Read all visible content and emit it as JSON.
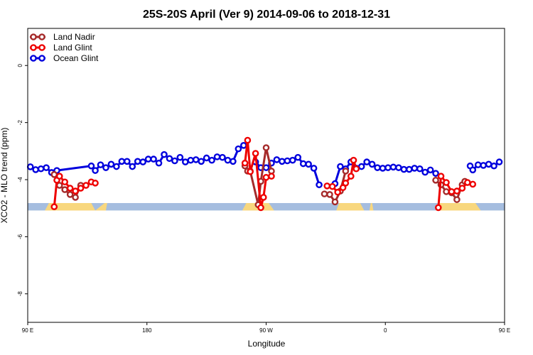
{
  "chart_data": {
    "type": "line",
    "title": "25S-20S April (Ver 9)   2014-09-06 to 2018-12-31",
    "xlabel": "Longitude",
    "ylabel": "XCO2 - MLO trend (ppm)",
    "xlim": [
      90,
      450
    ],
    "ylim": [
      -9,
      1.3
    ],
    "x_ticks": [
      {
        "value": 90,
        "label": "90 E"
      },
      {
        "value": 180,
        "label": "180"
      },
      {
        "value": 270,
        "label": "90 W"
      },
      {
        "value": 360,
        "label": "0"
      },
      {
        "value": 450,
        "label": "90 E"
      },
      {
        "value": 540,
        "label": "180"
      }
    ],
    "y_ticks": [
      {
        "value": 0,
        "label": "0"
      },
      {
        "value": -2,
        "label": "-2"
      },
      {
        "value": -4,
        "label": "-4"
      },
      {
        "value": -6,
        "label": "-6"
      },
      {
        "value": -8,
        "label": "-8"
      }
    ],
    "legend": {
      "placement": "top-left",
      "entries": [
        "Land Nadir",
        "Land Glint",
        "Ocean Glint"
      ]
    },
    "colors": {
      "land_nadir": "#a52a2a",
      "land_glint": "#ee0000",
      "ocean_glint": "#0000dd",
      "ocean_band": "#a5bddf",
      "land_band": "#f8d77e"
    },
    "series": [
      {
        "name": "Ocean Glint",
        "color": "#0000dd",
        "segments": [
          [
            [
              92,
              -3.55
            ],
            [
              96,
              -3.65
            ],
            [
              100,
              -3.62
            ],
            [
              104,
              -3.58
            ],
            [
              108,
              -3.75
            ],
            [
              112,
              -3.68
            ],
            [
              138,
              -3.52
            ],
            [
              141,
              -3.68
            ],
            [
              145,
              -3.48
            ],
            [
              149,
              -3.58
            ],
            [
              153,
              -3.46
            ],
            [
              157,
              -3.54
            ],
            [
              161,
              -3.36
            ],
            [
              165,
              -3.36
            ],
            [
              169,
              -3.54
            ],
            [
              173,
              -3.36
            ],
            [
              177,
              -3.38
            ],
            [
              181,
              -3.28
            ],
            [
              185,
              -3.28
            ],
            [
              189,
              -3.42
            ],
            [
              193,
              -3.12
            ],
            [
              197,
              -3.26
            ],
            [
              201,
              -3.34
            ],
            [
              205,
              -3.22
            ],
            [
              209,
              -3.38
            ],
            [
              213,
              -3.32
            ],
            [
              217,
              -3.3
            ],
            [
              221,
              -3.36
            ],
            [
              225,
              -3.24
            ],
            [
              229,
              -3.32
            ],
            [
              233,
              -3.2
            ],
            [
              237,
              -3.22
            ],
            [
              241,
              -3.32
            ],
            [
              245,
              -3.36
            ],
            [
              249,
              -2.92
            ],
            [
              253,
              -2.8
            ]
          ],
          [
            [
              262,
              -3.38
            ],
            [
              266,
              -3.58
            ],
            [
              270,
              -3.58
            ],
            [
              274,
              -3.42
            ],
            [
              278,
              -3.3
            ],
            [
              282,
              -3.36
            ],
            [
              286,
              -3.34
            ],
            [
              290,
              -3.32
            ],
            [
              294,
              -3.22
            ],
            [
              298,
              -3.44
            ],
            [
              302,
              -3.46
            ],
            [
              306,
              -3.6
            ],
            [
              310,
              -4.18
            ]
          ],
          [
            [
              322,
              -4.14
            ],
            [
              326,
              -3.54
            ],
            [
              330,
              -3.62
            ],
            [
              334,
              -3.38
            ],
            [
              338,
              -3.6
            ],
            [
              342,
              -3.54
            ],
            [
              346,
              -3.38
            ],
            [
              350,
              -3.46
            ],
            [
              354,
              -3.58
            ],
            [
              358,
              -3.6
            ],
            [
              362,
              -3.58
            ],
            [
              366,
              -3.56
            ],
            [
              370,
              -3.58
            ],
            [
              374,
              -3.64
            ],
            [
              378,
              -3.64
            ],
            [
              382,
              -3.6
            ],
            [
              386,
              -3.62
            ],
            [
              390,
              -3.74
            ],
            [
              394,
              -3.66
            ],
            [
              398,
              -3.78
            ]
          ],
          [
            [
              424,
              -3.52
            ],
            [
              426,
              -3.66
            ],
            [
              430,
              -3.48
            ],
            [
              434,
              -3.5
            ],
            [
              438,
              -3.46
            ],
            [
              442,
              -3.52
            ],
            [
              446,
              -3.38
            ]
          ]
        ]
      },
      {
        "name": "Land Nadir",
        "color": "#a52a2a",
        "segments": [
          [
            [
              110,
              -3.82
            ],
            [
              114,
              -4.2
            ],
            [
              118,
              -4.35
            ],
            [
              122,
              -4.52
            ],
            [
              126,
              -4.62
            ],
            [
              130,
              -4.2
            ]
          ],
          [
            [
              254,
              -3.52
            ],
            [
              256,
              -3.7
            ],
            [
              258,
              -3.7
            ],
            [
              264,
              -4.88
            ],
            [
              266,
              -4.06
            ],
            [
              270,
              -2.88
            ],
            [
              274,
              -3.7
            ]
          ],
          [
            [
              314,
              -4.5
            ],
            [
              318,
              -4.52
            ],
            [
              322,
              -4.78
            ],
            [
              326,
              -4.4
            ],
            [
              330,
              -3.7
            ]
          ],
          [
            [
              398,
              -4.02
            ],
            [
              402,
              -4.18
            ],
            [
              406,
              -4.42
            ],
            [
              410,
              -4.46
            ],
            [
              414,
              -4.7
            ],
            [
              418,
              -4.18
            ],
            [
              420,
              -4.06
            ]
          ]
        ]
      },
      {
        "name": "Land Glint",
        "color": "#ee0000",
        "segments": [
          [
            [
              110,
              -4.95
            ],
            [
              112,
              -4.02
            ],
            [
              114,
              -3.88
            ],
            [
              118,
              -4.08
            ],
            [
              122,
              -4.3
            ],
            [
              126,
              -4.4
            ],
            [
              130,
              -4.3
            ],
            [
              134,
              -4.2
            ],
            [
              138,
              -4.08
            ],
            [
              141,
              -4.12
            ]
          ],
          [
            [
              254,
              -3.42
            ],
            [
              256,
              -2.62
            ],
            [
              258,
              -3.72
            ],
            [
              262,
              -3.08
            ],
            [
              266,
              -4.98
            ],
            [
              268,
              -4.62
            ],
            [
              270,
              -3.92
            ],
            [
              274,
              -3.88
            ]
          ],
          [
            [
              316,
              -4.22
            ],
            [
              320,
              -4.24
            ],
            [
              324,
              -4.44
            ],
            [
              328,
              -4.28
            ],
            [
              330,
              -4.12
            ],
            [
              334,
              -3.88
            ],
            [
              336,
              -3.32
            ],
            [
              338,
              -3.62
            ]
          ],
          [
            [
              400,
              -4.98
            ],
            [
              402,
              -3.88
            ],
            [
              406,
              -4.1
            ],
            [
              410,
              -4.42
            ],
            [
              414,
              -4.4
            ],
            [
              418,
              -4.3
            ],
            [
              422,
              -4.1
            ],
            [
              426,
              -4.16
            ]
          ]
        ]
      }
    ]
  }
}
